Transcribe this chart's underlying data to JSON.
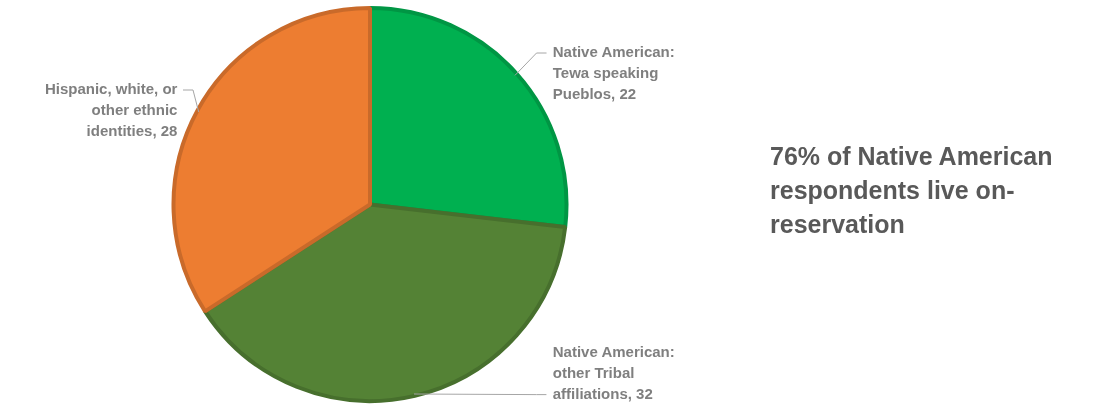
{
  "chart_data": {
    "type": "pie",
    "categories": [
      "Native American: Tewa speaking Pueblos",
      "Native American: other Tribal affiliations",
      "Hispanic, white, or other ethnic identities"
    ],
    "values": [
      22,
      32,
      28
    ],
    "colors": [
      "#00b050",
      "#548235",
      "#ed7d31"
    ],
    "value_labels": [
      ", 22",
      ", 32",
      ", 28"
    ],
    "legend": false,
    "annotations": [
      "76% of Native American respondents live on-reservation"
    ]
  }
}
